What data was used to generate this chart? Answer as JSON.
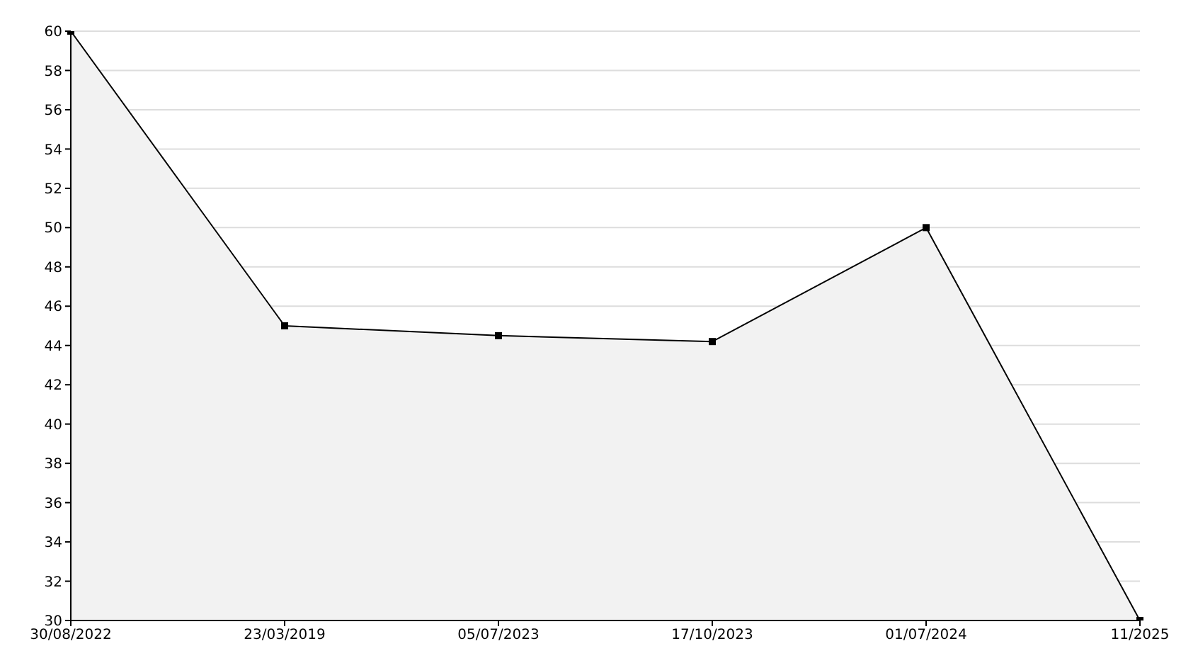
{
  "chart_data": {
    "type": "area",
    "categories": [
      "30/08/2022",
      "23/03/2019",
      "05/07/2023",
      "17/10/2023",
      "01/07/2024",
      "11/2025"
    ],
    "series": [
      {
        "color": "#000000",
        "values": [
          60,
          45,
          44.5,
          44.2,
          50,
          30
        ]
      }
    ],
    "ylim": [
      30,
      60
    ],
    "yticks": [
      30,
      32,
      34,
      36,
      38,
      40,
      42,
      44,
      46,
      48,
      50,
      52,
      54,
      56,
      58,
      60
    ],
    "grid": "y",
    "marker": "square",
    "legend": false
  }
}
